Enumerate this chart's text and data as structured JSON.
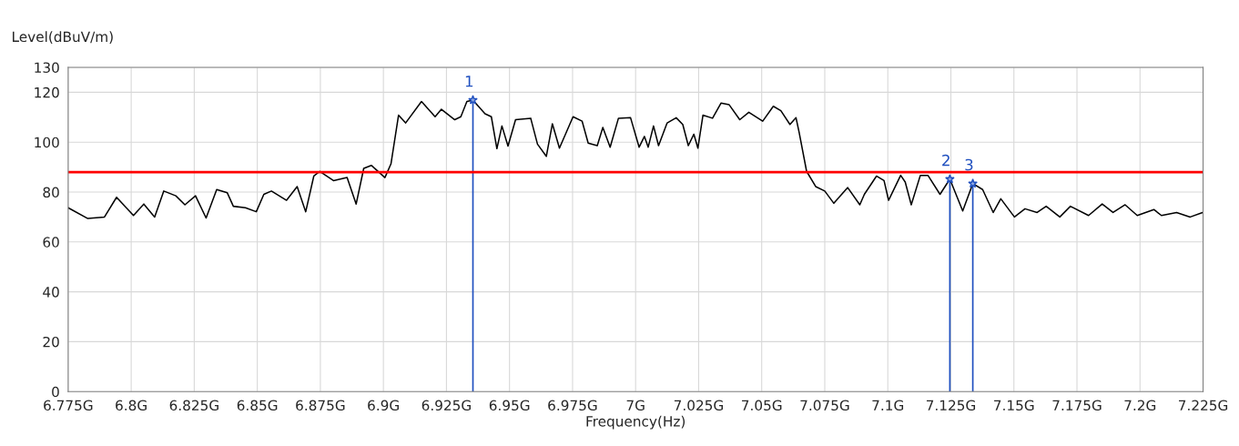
{
  "chart_data": {
    "type": "line",
    "xlabel": "Frequency(Hz)",
    "ylabel": "Level(dBuV/m)",
    "xlim": [
      6.775,
      7.225
    ],
    "xticks": [
      {
        "value": 6.775,
        "label": "6.775G"
      },
      {
        "value": 6.8,
        "label": "6.8G"
      },
      {
        "value": 6.825,
        "label": "6.825G"
      },
      {
        "value": 6.85,
        "label": "6.85G"
      },
      {
        "value": 6.875,
        "label": "6.875G"
      },
      {
        "value": 6.9,
        "label": "6.9G"
      },
      {
        "value": 6.925,
        "label": "6.925G"
      },
      {
        "value": 6.95,
        "label": "6.95G"
      },
      {
        "value": 6.975,
        "label": "6.975G"
      },
      {
        "value": 7.0,
        "label": "7G"
      },
      {
        "value": 7.025,
        "label": "7.025G"
      },
      {
        "value": 7.05,
        "label": "7.05G"
      },
      {
        "value": 7.075,
        "label": "7.075G"
      },
      {
        "value": 7.1,
        "label": "7.1G"
      },
      {
        "value": 7.125,
        "label": "7.125G"
      },
      {
        "value": 7.15,
        "label": "7.15G"
      },
      {
        "value": 7.175,
        "label": "7.175G"
      },
      {
        "value": 7.2,
        "label": "7.2G"
      },
      {
        "value": 7.225,
        "label": "7.225G"
      }
    ],
    "ylim": [
      0,
      130
    ],
    "yticks": [
      0,
      20,
      40,
      60,
      80,
      100,
      120,
      130
    ],
    "grid": true,
    "series": [
      {
        "color": "#000000",
        "x": [
          6.775,
          6.7828,
          6.7894,
          6.7942,
          6.8009,
          6.805,
          6.8093,
          6.8129,
          6.8177,
          6.8213,
          6.8255,
          6.8297,
          6.8339,
          6.8381,
          6.8405,
          6.8453,
          6.8496,
          6.8526,
          6.8556,
          6.8616,
          6.8658,
          6.8692,
          6.8724,
          6.8748,
          6.8802,
          6.8856,
          6.8892,
          6.8922,
          6.8952,
          6.9006,
          6.903,
          6.906,
          6.9088,
          6.9151,
          6.9205,
          6.923,
          6.9283,
          6.9307,
          6.9331,
          6.9355,
          6.9403,
          6.9428,
          6.945,
          6.947,
          6.9494,
          6.9524,
          6.9584,
          6.9611,
          6.9646,
          6.967,
          6.9698,
          6.9752,
          6.9788,
          6.9812,
          6.9848,
          6.987,
          6.9899,
          6.9932,
          6.998,
          7.0014,
          7.0035,
          7.005,
          7.0071,
          7.0091,
          7.0125,
          7.0161,
          7.0187,
          7.0209,
          7.0231,
          7.0247,
          7.0267,
          7.0305,
          7.0339,
          7.0371,
          7.0413,
          7.0449,
          7.0504,
          7.0546,
          7.0576,
          7.0612,
          7.0636,
          7.0648,
          7.0678,
          7.0714,
          7.075,
          7.0786,
          7.0841,
          7.0889,
          7.0907,
          7.0955,
          7.0985,
          7.1003,
          7.1051,
          7.1069,
          7.1093,
          7.1129,
          7.1159,
          7.1207,
          7.1246,
          7.1297,
          7.1337,
          7.1376,
          7.1418,
          7.1448,
          7.1502,
          7.1544,
          7.1592,
          7.1628,
          7.1682,
          7.1724,
          7.1796,
          7.185,
          7.1893,
          7.1941,
          7.1989,
          7.2055,
          7.2085,
          7.2145,
          7.2199,
          7.2248
        ],
        "values": [
          73.7,
          69.4,
          70,
          77.9,
          70.6,
          75.2,
          70,
          80.4,
          78.5,
          74.9,
          78.5,
          69.6,
          81,
          79.7,
          74.3,
          73.7,
          72.1,
          79.1,
          80.4,
          76.7,
          82.2,
          72.1,
          86.4,
          88.3,
          84.6,
          85.8,
          75.2,
          89.5,
          90.7,
          85.8,
          91.3,
          110.8,
          107.7,
          116.3,
          110.2,
          113.2,
          109,
          110.2,
          116.3,
          116.9,
          111.4,
          110.2,
          97.4,
          106.5,
          98.4,
          109,
          109.6,
          99.2,
          94.3,
          107.4,
          97.6,
          110.2,
          108.4,
          99.6,
          98.6,
          105.9,
          98,
          109.6,
          109.8,
          98,
          102.3,
          98,
          106.5,
          98.6,
          107.7,
          109.8,
          107.1,
          98.6,
          103.2,
          97.6,
          110.8,
          109.6,
          115.7,
          115,
          109,
          112,
          108.4,
          114.4,
          112.6,
          107.1,
          109.8,
          104.1,
          88.3,
          82.2,
          80.4,
          75.5,
          81.8,
          74.9,
          79.1,
          86.4,
          84.6,
          76.7,
          86.7,
          84,
          74.9,
          86.7,
          86.7,
          79.1,
          85.2,
          72.4,
          83.4,
          81,
          71.8,
          77.3,
          70,
          73.3,
          71.8,
          74.3,
          70,
          74.3,
          70.6,
          75.2,
          71.8,
          74.9,
          70.6,
          73,
          70.6,
          71.8,
          70,
          71.8
        ]
      },
      {
        "type": "lollipop",
        "name": "1",
        "color": "#1f4fbf",
        "marker": "star",
        "x": [
          6.9355
        ],
        "values": [
          116.9
        ]
      },
      {
        "type": "lollipop",
        "name": "2",
        "color": "#1f4fbf",
        "marker": "star",
        "x": [
          7.1246
        ],
        "values": [
          85.2
        ]
      },
      {
        "type": "lollipop",
        "name": "3",
        "color": "#1f4fbf",
        "marker": "star",
        "x": [
          7.1337
        ],
        "values": [
          83.4
        ]
      }
    ],
    "ref_lines": [
      {
        "axis": "y",
        "value": 88,
        "color": "#ff0000"
      }
    ]
  }
}
